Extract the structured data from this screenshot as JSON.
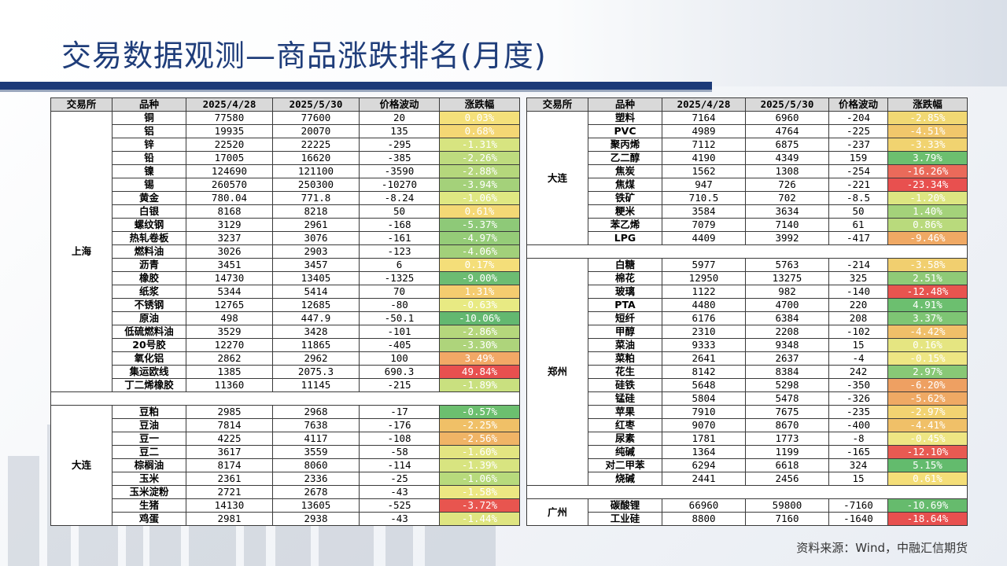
{
  "title": "交易数据观测—商品涨跌排名(月度)",
  "source": "资料来源：Wind，中融汇信期货",
  "headers": [
    "交易所",
    "品种",
    "2025/4/28",
    "2025/5/30",
    "价格波动",
    "涨跌幅"
  ],
  "left_table": {
    "groups": [
      {
        "exchange": "上海",
        "rows": [
          {
            "name": "铜",
            "p1": "77580",
            "p2": "77600",
            "chg": "20",
            "pct": "0.03%",
            "color": "#f4e07a"
          },
          {
            "name": "铝",
            "p1": "19935",
            "p2": "20070",
            "chg": "135",
            "pct": "0.68%",
            "color": "#f4d774"
          },
          {
            "name": "锌",
            "p1": "22520",
            "p2": "22225",
            "chg": "-295",
            "pct": "-1.31%",
            "color": "#d7e480"
          },
          {
            "name": "铅",
            "p1": "17005",
            "p2": "16620",
            "chg": "-385",
            "pct": "-2.26%",
            "color": "#bedb7e"
          },
          {
            "name": "镍",
            "p1": "124690",
            "p2": "121100",
            "chg": "-3590",
            "pct": "-2.88%",
            "color": "#b5d77c"
          },
          {
            "name": "锡",
            "p1": "260570",
            "p2": "250300",
            "chg": "-10270",
            "pct": "-3.94%",
            "color": "#a4d17a"
          },
          {
            "name": "黄金",
            "p1": "780.04",
            "p2": "771.8",
            "chg": "-8.24",
            "pct": "-1.06%",
            "color": "#dfe782"
          },
          {
            "name": "白银",
            "p1": "8168",
            "p2": "8218",
            "chg": "50",
            "pct": "0.61%",
            "color": "#f4d875"
          },
          {
            "name": "螺纹钢",
            "p1": "3129",
            "p2": "2961",
            "chg": "-168",
            "pct": "-5.37%",
            "color": "#8ec978"
          },
          {
            "name": "热轧卷板",
            "p1": "3237",
            "p2": "3076",
            "chg": "-161",
            "pct": "-4.97%",
            "color": "#95cc78"
          },
          {
            "name": "燃料油",
            "p1": "3026",
            "p2": "2903",
            "chg": "-123",
            "pct": "-4.06%",
            "color": "#a2d07a"
          },
          {
            "name": "沥青",
            "p1": "3451",
            "p2": "3457",
            "chg": "6",
            "pct": "0.17%",
            "color": "#f4de79"
          },
          {
            "name": "橡胶",
            "p1": "14730",
            "p2": "13405",
            "chg": "-1325",
            "pct": "-9.00%",
            "color": "#6cbc72"
          },
          {
            "name": "纸浆",
            "p1": "5344",
            "p2": "5414",
            "chg": "70",
            "pct": "1.31%",
            "color": "#f4cc6f"
          },
          {
            "name": "不锈钢",
            "p1": "12765",
            "p2": "12685",
            "chg": "-80",
            "pct": "-0.63%",
            "color": "#e8ea83"
          },
          {
            "name": "原油",
            "p1": "498",
            "p2": "447.9",
            "chg": "-50.1",
            "pct": "-10.06%",
            "color": "#63b870"
          },
          {
            "name": "低硫燃料油",
            "p1": "3529",
            "p2": "3428",
            "chg": "-101",
            "pct": "-2.86%",
            "color": "#b5d77c"
          },
          {
            "name": "20号胶",
            "p1": "12270",
            "p2": "11865",
            "chg": "-405",
            "pct": "-3.30%",
            "color": "#aed47b"
          },
          {
            "name": "氧化铝",
            "p1": "2862",
            "p2": "2962",
            "chg": "100",
            "pct": "3.49%",
            "color": "#f2a866"
          },
          {
            "name": "集运欧线",
            "p1": "1385",
            "p2": "2075.3",
            "chg": "690.3",
            "pct": "49.84%",
            "color": "#e8504f"
          },
          {
            "name": "丁二烯橡胶",
            "p1": "11360",
            "p2": "11145",
            "chg": "-215",
            "pct": "-1.89%",
            "color": "#c9e07f"
          }
        ]
      },
      {
        "exchange": "大连",
        "rows": [
          {
            "name": "豆粕",
            "p1": "2985",
            "p2": "2968",
            "chg": "-17",
            "pct": "-0.57%",
            "color": "#6cbf6f"
          },
          {
            "name": "豆油",
            "p1": "7814",
            "p2": "7638",
            "chg": "-176",
            "pct": "-2.25%",
            "color": "#f0c067"
          },
          {
            "name": "豆一",
            "p1": "4225",
            "p2": "4117",
            "chg": "-108",
            "pct": "-2.56%",
            "color": "#f0b466"
          },
          {
            "name": "豆二",
            "p1": "3617",
            "p2": "3559",
            "chg": "-58",
            "pct": "-1.60%",
            "color": "#e3e581"
          },
          {
            "name": "棕榈油",
            "p1": "8174",
            "p2": "8060",
            "chg": "-114",
            "pct": "-1.39%",
            "color": "#d8e480"
          },
          {
            "name": "玉米",
            "p1": "2361",
            "p2": "2336",
            "chg": "-25",
            "pct": "-1.06%",
            "color": "#b7da7c"
          },
          {
            "name": "玉米淀粉",
            "p1": "2721",
            "p2": "2678",
            "chg": "-43",
            "pct": "-1.58%",
            "color": "#ece782"
          },
          {
            "name": "生猪",
            "p1": "14130",
            "p2": "13605",
            "chg": "-525",
            "pct": "-3.72%",
            "color": "#e8554f"
          },
          {
            "name": "鸡蛋",
            "p1": "2981",
            "p2": "2938",
            "chg": "-43",
            "pct": "-1.44%",
            "color": "#dfe581"
          }
        ]
      }
    ]
  },
  "right_table": {
    "groups": [
      {
        "exchange": "大连",
        "rows": [
          {
            "name": "塑料",
            "p1": "7164",
            "p2": "6960",
            "chg": "-204",
            "pct": "-2.85%",
            "color": "#f1d873"
          },
          {
            "name": "PVC",
            "p1": "4989",
            "p2": "4764",
            "chg": "-225",
            "pct": "-4.51%",
            "color": "#f1c76b"
          },
          {
            "name": "聚丙烯",
            "p1": "7112",
            "p2": "6875",
            "chg": "-237",
            "pct": "-3.33%",
            "color": "#f1d370"
          },
          {
            "name": "乙二醇",
            "p1": "4190",
            "p2": "4349",
            "chg": "159",
            "pct": "3.79%",
            "color": "#6cbf6f"
          },
          {
            "name": "焦炭",
            "p1": "1562",
            "p2": "1308",
            "chg": "-254",
            "pct": "-16.26%",
            "color": "#ea6a5a"
          },
          {
            "name": "焦煤",
            "p1": "947",
            "p2": "726",
            "chg": "-221",
            "pct": "-23.34%",
            "color": "#e8504f"
          },
          {
            "name": "铁矿",
            "p1": "710.5",
            "p2": "702",
            "chg": "-8.5",
            "pct": "-1.20%",
            "color": "#dde581"
          },
          {
            "name": "粳米",
            "p1": "3584",
            "p2": "3634",
            "chg": "50",
            "pct": "1.40%",
            "color": "#a4d27a"
          },
          {
            "name": "苯乙烯",
            "p1": "7079",
            "p2": "7140",
            "chg": "61",
            "pct": "0.86%",
            "color": "#b9da7c"
          },
          {
            "name": "LPG",
            "p1": "4409",
            "p2": "3992",
            "chg": "-417",
            "pct": "-9.46%",
            "color": "#f0a964"
          }
        ]
      },
      {
        "exchange": "郑州",
        "rows": [
          {
            "name": "白糖",
            "p1": "5977",
            "p2": "5763",
            "chg": "-214",
            "pct": "-3.58%",
            "color": "#f1cf6f"
          },
          {
            "name": "棉花",
            "p1": "12950",
            "p2": "13275",
            "chg": "325",
            "pct": "2.51%",
            "color": "#8fca77"
          },
          {
            "name": "玻璃",
            "p1": "1122",
            "p2": "982",
            "chg": "-140",
            "pct": "-12.48%",
            "color": "#e8544f"
          },
          {
            "name": "PTA",
            "p1": "4480",
            "p2": "4700",
            "chg": "220",
            "pct": "4.91%",
            "color": "#6cbf6f"
          },
          {
            "name": "短纤",
            "p1": "6176",
            "p2": "6384",
            "chg": "208",
            "pct": "3.37%",
            "color": "#7ec574"
          },
          {
            "name": "甲醇",
            "p1": "2310",
            "p2": "2208",
            "chg": "-102",
            "pct": "-4.42%",
            "color": "#f0bf69"
          },
          {
            "name": "菜油",
            "p1": "9333",
            "p2": "9348",
            "chg": "15",
            "pct": "0.16%",
            "color": "#e5e581"
          },
          {
            "name": "菜粕",
            "p1": "2641",
            "p2": "2637",
            "chg": "-4",
            "pct": "-0.15%",
            "color": "#eee683"
          },
          {
            "name": "花生",
            "p1": "8142",
            "p2": "8384",
            "chg": "242",
            "pct": "2.97%",
            "color": "#88c876"
          },
          {
            "name": "硅铁",
            "p1": "5648",
            "p2": "5298",
            "chg": "-350",
            "pct": "-6.20%",
            "color": "#eea062"
          },
          {
            "name": "锰硅",
            "p1": "5804",
            "p2": "5478",
            "chg": "-326",
            "pct": "-5.62%",
            "color": "#efa964"
          },
          {
            "name": "苹果",
            "p1": "7910",
            "p2": "7675",
            "chg": "-235",
            "pct": "-2.97%",
            "color": "#f2d371"
          },
          {
            "name": "红枣",
            "p1": "9070",
            "p2": "8670",
            "chg": "-400",
            "pct": "-4.41%",
            "color": "#f0c068"
          },
          {
            "name": "尿素",
            "p1": "1781",
            "p2": "1773",
            "chg": "-8",
            "pct": "-0.45%",
            "color": "#eee683"
          },
          {
            "name": "纯碱",
            "p1": "1364",
            "p2": "1199",
            "chg": "-165",
            "pct": "-12.10%",
            "color": "#e85a52"
          },
          {
            "name": "对二甲苯",
            "p1": "6294",
            "p2": "6618",
            "chg": "324",
            "pct": "5.15%",
            "color": "#63bb6d"
          },
          {
            "name": "烧碱",
            "p1": "2441",
            "p2": "2456",
            "chg": "15",
            "pct": "0.61%",
            "color": "#f4de78"
          }
        ]
      },
      {
        "exchange": "广州",
        "rows": [
          {
            "name": "碳酸锂",
            "p1": "66960",
            "p2": "59800",
            "chg": "-7160",
            "pct": "-10.69%",
            "color": "#66bb6d"
          },
          {
            "name": "工业硅",
            "p1": "8800",
            "p2": "7160",
            "chg": "-1640",
            "pct": "-18.64%",
            "color": "#e8504f"
          }
        ]
      }
    ]
  }
}
